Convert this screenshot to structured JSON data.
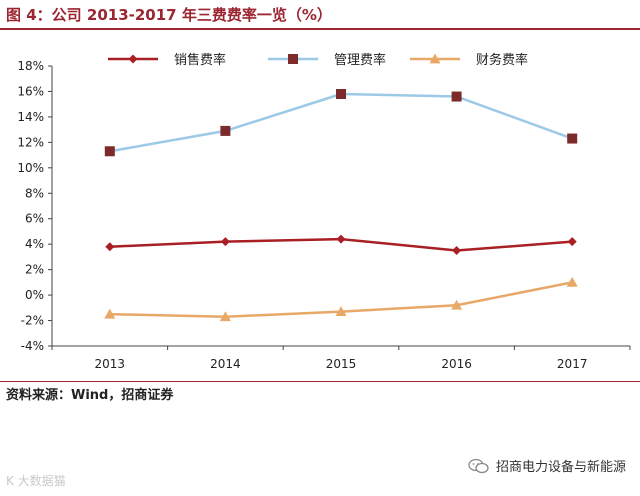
{
  "header": {
    "title": "图 4：公司 2013-2017 年三费费率一览（%）"
  },
  "source": "资料来源：Wind，招商证券",
  "watermark": {
    "left": "K 大数据猫",
    "right": "招商电力设备与新能源",
    "right_icon": "wechat-icon"
  },
  "chart_data": {
    "type": "line",
    "title": "",
    "xlabel": "",
    "ylabel": "",
    "categories": [
      "2013",
      "2014",
      "2015",
      "2016",
      "2017"
    ],
    "ylim": [
      -4,
      18
    ],
    "ytick_step": 2,
    "ytick_suffix": "%",
    "grid": false,
    "legend_position": "top",
    "series": [
      {
        "name": "销售费率",
        "values": [
          3.8,
          4.2,
          4.4,
          3.5,
          4.2
        ],
        "color": "#a81f24",
        "marker": "diamond"
      },
      {
        "name": "管理费率",
        "values": [
          11.3,
          12.9,
          15.8,
          15.6,
          12.3
        ],
        "color": "#9cc9e6",
        "marker": "square",
        "marker_color": "#7d2a2a"
      },
      {
        "name": "财务费率",
        "values": [
          -1.5,
          -1.7,
          -1.3,
          -0.8,
          1.0
        ],
        "color": "#e8a867",
        "marker": "triangle"
      }
    ]
  }
}
